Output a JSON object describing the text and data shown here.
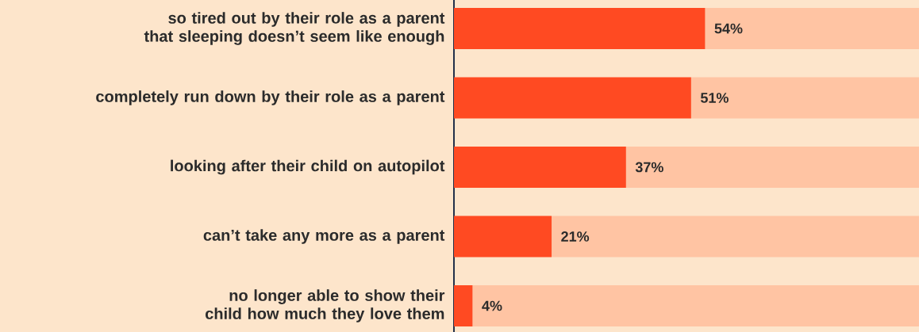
{
  "chart_data": {
    "type": "bar",
    "orientation": "horizontal",
    "stacked": true,
    "tick_labels": "y",
    "categories": [
      "so tired out by their role as a parent that sleeping doesn’t seem like enough",
      "completely run down by their role as a parent",
      "looking after their child on autopilot",
      "can’t take any more as a parent",
      "no longer able to show their child how much they love them"
    ],
    "series": [
      {
        "color": "#ff4a22",
        "values": [
          54,
          51,
          37,
          21,
          4
        ],
        "value_labels": [
          "54%",
          "51%",
          "37%",
          "21%",
          "4%"
        ]
      },
      {
        "color": "#ffc4a3",
        "values": [
          46,
          49,
          63,
          79,
          96
        ]
      }
    ]
  }
}
